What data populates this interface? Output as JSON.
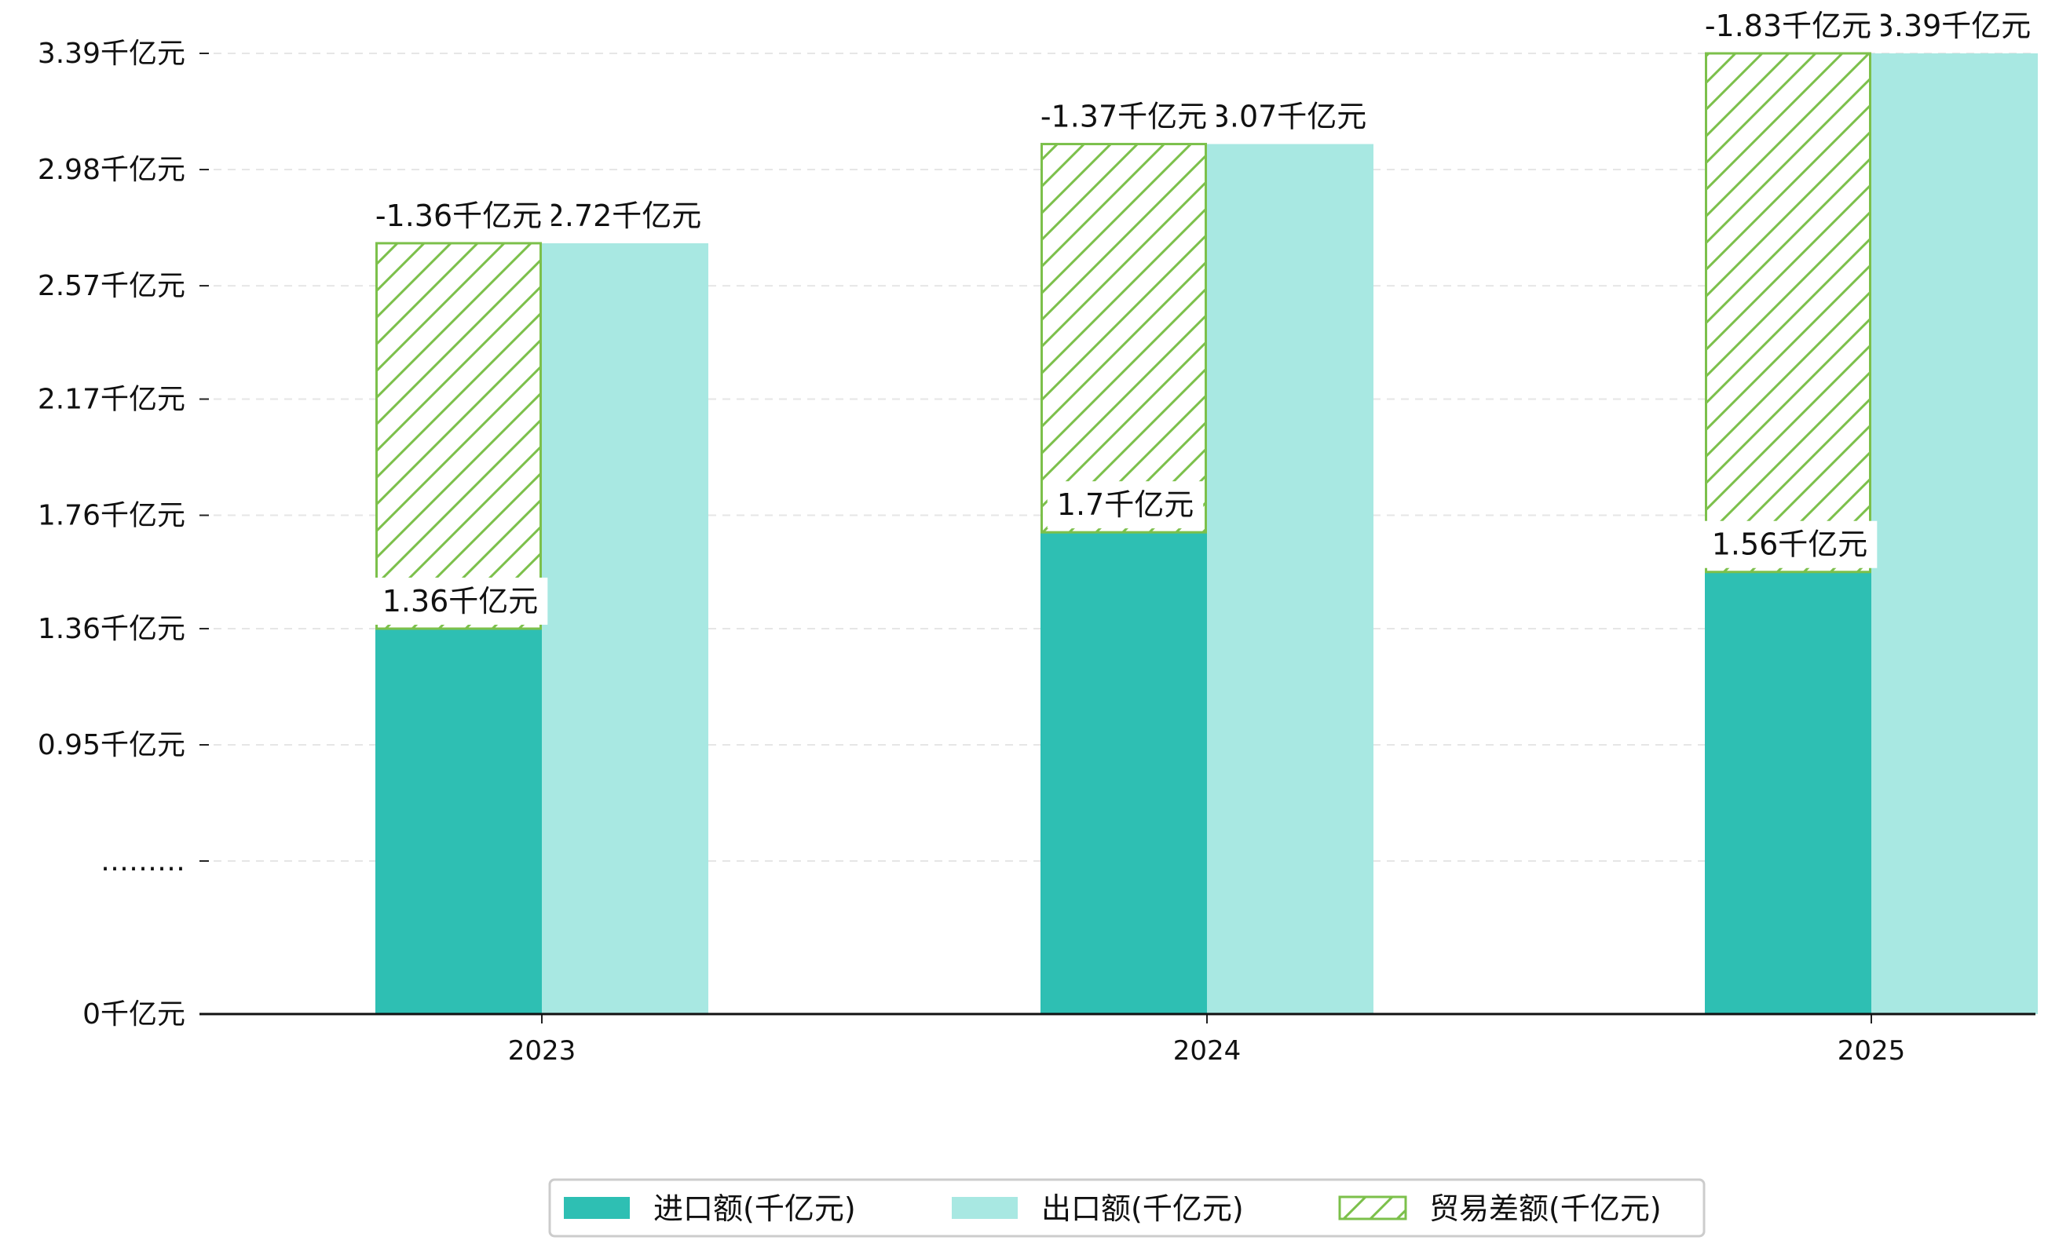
{
  "chart_data": {
    "type": "bar",
    "categories": [
      "2023",
      "2024",
      "2025"
    ],
    "series": [
      {
        "name": "进口额(千亿元)",
        "values": [
          1.36,
          1.7,
          1.56
        ],
        "labels": [
          "1.36千亿元",
          "1.7千亿元",
          "1.56千亿元"
        ],
        "color": "#2ebfb3"
      },
      {
        "name": "出口额(千亿元)",
        "values": [
          2.72,
          3.07,
          3.39
        ],
        "labels": [
          "2.72千亿元",
          "3.07千亿元",
          "3.39千亿元"
        ],
        "color": "#a8e8e2"
      },
      {
        "name": "贸易差额(千亿元)",
        "values": [
          -1.36,
          -1.37,
          -1.83
        ],
        "labels": [
          "-1.36千亿元",
          "-1.37千亿元",
          "-1.83千亿元"
        ],
        "color": "#7cc04b"
      }
    ],
    "y_ticks": [
      {
        "value": 0,
        "label": "0千亿元"
      },
      {
        "value": 0.54,
        "label": "………"
      },
      {
        "value": 0.95,
        "label": "0.95千亿元"
      },
      {
        "value": 1.36,
        "label": "1.36千亿元"
      },
      {
        "value": 1.76,
        "label": "1.76千亿元"
      },
      {
        "value": 2.17,
        "label": "2.17千亿元"
      },
      {
        "value": 2.57,
        "label": "2.57千亿元"
      },
      {
        "value": 2.98,
        "label": "2.98千亿元"
      },
      {
        "value": 3.39,
        "label": "3.39千亿元"
      }
    ],
    "ylim": [
      0,
      3.39
    ],
    "grid": true,
    "legend_position": "bottom-center"
  }
}
